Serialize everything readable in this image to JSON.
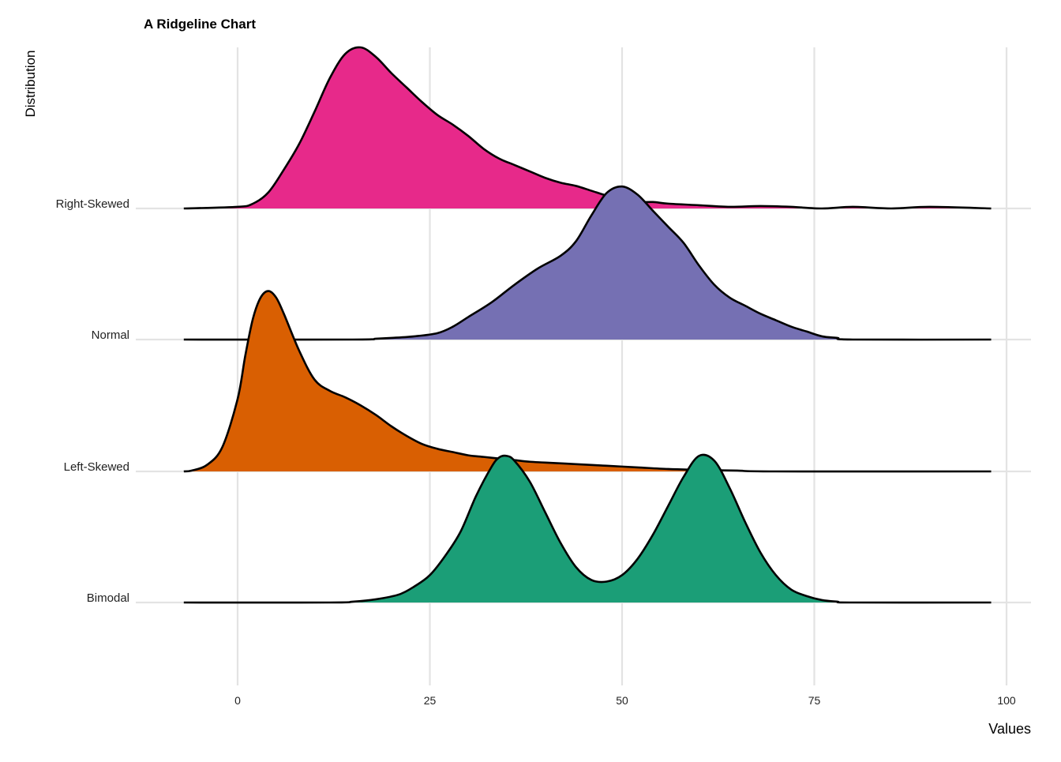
{
  "chart_data": {
    "type": "ridgeline",
    "title": "A Ridgeline Chart",
    "xlabel": "Values",
    "ylabel": "Distribution",
    "xlim": [
      -7,
      98
    ],
    "xticks": [
      0,
      25,
      50,
      75,
      100
    ],
    "grid": true,
    "legend": "none",
    "series": [
      {
        "name": "Right-Skewed",
        "color": "#E7298A",
        "density": [
          [
            -7,
            0
          ],
          [
            0,
            0.01
          ],
          [
            2,
            0.03
          ],
          [
            4,
            0.1
          ],
          [
            6,
            0.24
          ],
          [
            8,
            0.4
          ],
          [
            10,
            0.6
          ],
          [
            12,
            0.81
          ],
          [
            14,
            0.96
          ],
          [
            16,
            1.0
          ],
          [
            18,
            0.94
          ],
          [
            20,
            0.84
          ],
          [
            22,
            0.75
          ],
          [
            24,
            0.66
          ],
          [
            26,
            0.58
          ],
          [
            28,
            0.52
          ],
          [
            30,
            0.45
          ],
          [
            32,
            0.37
          ],
          [
            34,
            0.31
          ],
          [
            36,
            0.27
          ],
          [
            38,
            0.23
          ],
          [
            40,
            0.19
          ],
          [
            42,
            0.16
          ],
          [
            44,
            0.14
          ],
          [
            46,
            0.11
          ],
          [
            48,
            0.08
          ],
          [
            50,
            0.06
          ],
          [
            52,
            0.04
          ],
          [
            54,
            0.04
          ],
          [
            56,
            0.03
          ],
          [
            60,
            0.02
          ],
          [
            64,
            0.01
          ],
          [
            68,
            0.015
          ],
          [
            72,
            0.01
          ],
          [
            76,
            0.0
          ],
          [
            80,
            0.01
          ],
          [
            85,
            0.0
          ],
          [
            90,
            0.01
          ],
          [
            98,
            0.0
          ]
        ]
      },
      {
        "name": "Normal",
        "color": "#7570B3",
        "density": [
          [
            -7,
            0
          ],
          [
            15,
            0
          ],
          [
            18,
            0.005
          ],
          [
            20,
            0.01
          ],
          [
            23,
            0.02
          ],
          [
            26,
            0.04
          ],
          [
            28,
            0.08
          ],
          [
            30,
            0.14
          ],
          [
            33,
            0.23
          ],
          [
            36,
            0.34
          ],
          [
            39,
            0.44
          ],
          [
            42,
            0.52
          ],
          [
            44,
            0.61
          ],
          [
            46,
            0.77
          ],
          [
            48,
            0.91
          ],
          [
            50,
            0.95
          ],
          [
            52,
            0.9
          ],
          [
            54,
            0.8
          ],
          [
            56,
            0.7
          ],
          [
            58,
            0.6
          ],
          [
            60,
            0.46
          ],
          [
            62,
            0.34
          ],
          [
            64,
            0.26
          ],
          [
            66,
            0.21
          ],
          [
            68,
            0.16
          ],
          [
            70,
            0.12
          ],
          [
            72,
            0.08
          ],
          [
            74,
            0.05
          ],
          [
            76,
            0.02
          ],
          [
            78,
            0.01
          ],
          [
            80,
            0.0
          ],
          [
            98,
            0
          ]
        ]
      },
      {
        "name": "Left-Skewed",
        "color": "#D95F02",
        "density": [
          [
            -7,
            0
          ],
          [
            -6,
            0.005
          ],
          [
            -4,
            0.04
          ],
          [
            -2,
            0.15
          ],
          [
            0,
            0.45
          ],
          [
            1,
            0.72
          ],
          [
            2,
            0.95
          ],
          [
            3,
            1.08
          ],
          [
            4,
            1.12
          ],
          [
            5,
            1.08
          ],
          [
            6,
            0.98
          ],
          [
            8,
            0.75
          ],
          [
            10,
            0.57
          ],
          [
            12,
            0.5
          ],
          [
            14,
            0.46
          ],
          [
            16,
            0.41
          ],
          [
            18,
            0.35
          ],
          [
            20,
            0.28
          ],
          [
            22,
            0.22
          ],
          [
            24,
            0.17
          ],
          [
            26,
            0.14
          ],
          [
            28,
            0.12
          ],
          [
            30,
            0.1
          ],
          [
            32,
            0.09
          ],
          [
            34,
            0.08
          ],
          [
            36,
            0.07
          ],
          [
            38,
            0.06
          ],
          [
            40,
            0.055
          ],
          [
            44,
            0.045
          ],
          [
            48,
            0.035
          ],
          [
            52,
            0.025
          ],
          [
            56,
            0.015
          ],
          [
            60,
            0.01
          ],
          [
            65,
            0.005
          ],
          [
            70,
            0.0
          ],
          [
            98,
            0
          ]
        ]
      },
      {
        "name": "Bimodal",
        "color": "#1B9E77",
        "density": [
          [
            -7,
            0
          ],
          [
            12,
            0
          ],
          [
            15,
            0.005
          ],
          [
            18,
            0.02
          ],
          [
            21,
            0.05
          ],
          [
            23,
            0.1
          ],
          [
            25,
            0.17
          ],
          [
            27,
            0.29
          ],
          [
            29,
            0.44
          ],
          [
            31,
            0.66
          ],
          [
            33,
            0.84
          ],
          [
            34,
            0.9
          ],
          [
            35,
            0.91
          ],
          [
            36,
            0.88
          ],
          [
            38,
            0.75
          ],
          [
            40,
            0.56
          ],
          [
            42,
            0.37
          ],
          [
            44,
            0.22
          ],
          [
            46,
            0.14
          ],
          [
            48,
            0.13
          ],
          [
            50,
            0.17
          ],
          [
            52,
            0.27
          ],
          [
            54,
            0.42
          ],
          [
            56,
            0.6
          ],
          [
            58,
            0.78
          ],
          [
            60,
            0.91
          ],
          [
            62,
            0.88
          ],
          [
            64,
            0.71
          ],
          [
            66,
            0.5
          ],
          [
            68,
            0.31
          ],
          [
            70,
            0.17
          ],
          [
            72,
            0.08
          ],
          [
            74,
            0.04
          ],
          [
            76,
            0.015
          ],
          [
            78,
            0.005
          ],
          [
            80,
            0
          ],
          [
            98,
            0
          ]
        ]
      }
    ]
  }
}
